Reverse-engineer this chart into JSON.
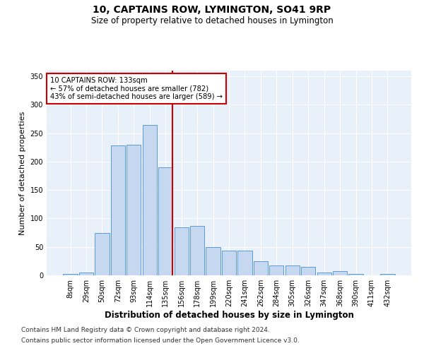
{
  "title": "10, CAPTAINS ROW, LYMINGTON, SO41 9RP",
  "subtitle": "Size of property relative to detached houses in Lymington",
  "xlabel": "Distribution of detached houses by size in Lymington",
  "ylabel": "Number of detached properties",
  "categories": [
    "8sqm",
    "29sqm",
    "50sqm",
    "72sqm",
    "93sqm",
    "114sqm",
    "135sqm",
    "156sqm",
    "178sqm",
    "199sqm",
    "220sqm",
    "241sqm",
    "262sqm",
    "284sqm",
    "305sqm",
    "326sqm",
    "347sqm",
    "368sqm",
    "390sqm",
    "411sqm",
    "432sqm"
  ],
  "bar_heights": [
    2,
    5,
    75,
    228,
    230,
    265,
    190,
    85,
    87,
    50,
    43,
    43,
    25,
    18,
    18,
    15,
    5,
    8,
    2,
    0,
    2
  ],
  "bar_color": "#c5d8f0",
  "bar_edge_color": "#5b9bd5",
  "vline_color": "#cc0000",
  "property_line_x": 6.42,
  "property_label": "10 CAPTAINS ROW: 133sqm",
  "annotation_left": "← 57% of detached houses are smaller (782)",
  "annotation_right": "43% of semi-detached houses are larger (589) →",
  "annotation_box_color": "#ffffff",
  "annotation_box_edge": "#cc0000",
  "ylim": [
    0,
    360
  ],
  "yticks": [
    0,
    50,
    100,
    150,
    200,
    250,
    300,
    350
  ],
  "footer1": "Contains HM Land Registry data © Crown copyright and database right 2024.",
  "footer2": "Contains public sector information licensed under the Open Government Licence v3.0.",
  "plot_bg_color": "#e8f0fa"
}
